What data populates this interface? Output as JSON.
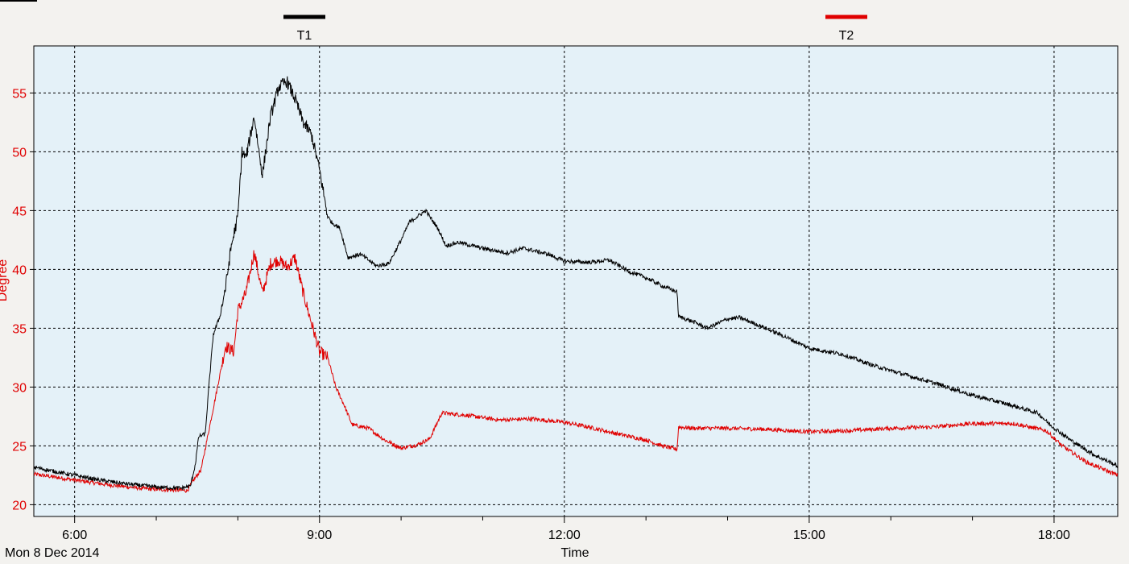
{
  "chart_data": {
    "type": "line",
    "title": "",
    "xlabel": "Time",
    "ylabel": "Degree",
    "date_label": "Mon 8 Dec 2014",
    "x_unit": "hours of day",
    "xlim": [
      5.5,
      18.78
    ],
    "ylim": [
      19,
      59
    ],
    "x_ticks": [
      {
        "value": 6,
        "label": "6:00"
      },
      {
        "value": 9,
        "label": "9:00"
      },
      {
        "value": 12,
        "label": "12:00"
      },
      {
        "value": 15,
        "label": "15:00"
      },
      {
        "value": 18,
        "label": "18:00"
      }
    ],
    "y_ticks": [
      20,
      25,
      30,
      35,
      40,
      45,
      50,
      55
    ],
    "grid": true,
    "legend_position": "top",
    "colors": {
      "background": "#e4f1f8",
      "grid": "#000000",
      "y_tick_text": "#e00000",
      "ylabel_text": "#e00000"
    },
    "series": [
      {
        "name": "T1",
        "color": "#000000",
        "noise": 0.35,
        "points": [
          [
            5.5,
            23.2
          ],
          [
            5.7,
            22.9
          ],
          [
            6.0,
            22.5
          ],
          [
            6.3,
            22.1
          ],
          [
            6.6,
            21.8
          ],
          [
            7.0,
            21.5
          ],
          [
            7.3,
            21.4
          ],
          [
            7.42,
            21.6
          ],
          [
            7.48,
            23.5
          ],
          [
            7.52,
            25.8
          ],
          [
            7.6,
            26.0
          ],
          [
            7.65,
            30.5
          ],
          [
            7.7,
            34.5
          ],
          [
            7.78,
            36.0
          ],
          [
            7.85,
            38.5
          ],
          [
            7.92,
            42.0
          ],
          [
            8.0,
            44.5
          ],
          [
            8.05,
            50.0
          ],
          [
            8.1,
            49.5
          ],
          [
            8.2,
            53.0
          ],
          [
            8.3,
            48.0
          ],
          [
            8.4,
            53.0
          ],
          [
            8.5,
            55.5
          ],
          [
            8.6,
            56.0
          ],
          [
            8.7,
            54.5
          ],
          [
            8.8,
            52.5
          ],
          [
            8.9,
            51.5
          ],
          [
            9.0,
            48.5
          ],
          [
            9.1,
            44.5
          ],
          [
            9.15,
            44.0
          ],
          [
            9.25,
            43.5
          ],
          [
            9.35,
            41.0
          ],
          [
            9.5,
            41.3
          ],
          [
            9.7,
            40.3
          ],
          [
            9.85,
            40.5
          ],
          [
            10.0,
            42.5
          ],
          [
            10.1,
            44.0
          ],
          [
            10.3,
            45.0
          ],
          [
            10.45,
            43.5
          ],
          [
            10.55,
            42.0
          ],
          [
            10.7,
            42.3
          ],
          [
            11.0,
            41.8
          ],
          [
            11.3,
            41.4
          ],
          [
            11.5,
            41.8
          ],
          [
            11.8,
            41.3
          ],
          [
            12.0,
            40.7
          ],
          [
            12.3,
            40.6
          ],
          [
            12.55,
            40.8
          ],
          [
            12.8,
            39.8
          ],
          [
            13.0,
            39.3
          ],
          [
            13.2,
            38.6
          ],
          [
            13.38,
            38.1
          ],
          [
            13.4,
            36.0
          ],
          [
            13.6,
            35.5
          ],
          [
            13.75,
            35.0
          ],
          [
            14.0,
            35.8
          ],
          [
            14.15,
            35.9
          ],
          [
            14.4,
            35.2
          ],
          [
            14.7,
            34.3
          ],
          [
            15.0,
            33.3
          ],
          [
            15.4,
            32.8
          ],
          [
            15.8,
            31.8
          ],
          [
            16.2,
            31.0
          ],
          [
            16.6,
            30.2
          ],
          [
            17.0,
            29.3
          ],
          [
            17.4,
            28.6
          ],
          [
            17.8,
            27.8
          ],
          [
            17.95,
            26.8
          ],
          [
            18.2,
            25.5
          ],
          [
            18.5,
            24.2
          ],
          [
            18.78,
            23.3
          ]
        ]
      },
      {
        "name": "T2",
        "color": "#e00000",
        "noise": 0.35,
        "points": [
          [
            5.5,
            22.6
          ],
          [
            5.8,
            22.3
          ],
          [
            6.0,
            22.1
          ],
          [
            6.4,
            21.7
          ],
          [
            6.8,
            21.4
          ],
          [
            7.0,
            21.3
          ],
          [
            7.38,
            21.2
          ],
          [
            7.45,
            22.0
          ],
          [
            7.55,
            23.0
          ],
          [
            7.65,
            26.5
          ],
          [
            7.75,
            30.0
          ],
          [
            7.85,
            33.5
          ],
          [
            7.95,
            33.0
          ],
          [
            8.0,
            36.5
          ],
          [
            8.1,
            38.0
          ],
          [
            8.2,
            41.5
          ],
          [
            8.3,
            38.0
          ],
          [
            8.4,
            40.5
          ],
          [
            8.5,
            40.8
          ],
          [
            8.6,
            40.2
          ],
          [
            8.7,
            41.0
          ],
          [
            8.8,
            38.0
          ],
          [
            8.9,
            35.5
          ],
          [
            9.0,
            33.0
          ],
          [
            9.1,
            32.5
          ],
          [
            9.2,
            30.0
          ],
          [
            9.3,
            28.5
          ],
          [
            9.4,
            26.8
          ],
          [
            9.6,
            26.5
          ],
          [
            9.8,
            25.5
          ],
          [
            10.0,
            24.8
          ],
          [
            10.2,
            25.1
          ],
          [
            10.35,
            25.6
          ],
          [
            10.5,
            27.8
          ],
          [
            10.8,
            27.6
          ],
          [
            11.2,
            27.2
          ],
          [
            11.6,
            27.3
          ],
          [
            12.0,
            27.0
          ],
          [
            12.3,
            26.6
          ],
          [
            12.6,
            26.1
          ],
          [
            13.0,
            25.5
          ],
          [
            13.2,
            25.0
          ],
          [
            13.38,
            24.7
          ],
          [
            13.4,
            26.6
          ],
          [
            13.6,
            26.5
          ],
          [
            14.0,
            26.5
          ],
          [
            14.5,
            26.4
          ],
          [
            15.0,
            26.2
          ],
          [
            15.5,
            26.3
          ],
          [
            16.0,
            26.5
          ],
          [
            16.5,
            26.6
          ],
          [
            17.0,
            26.9
          ],
          [
            17.5,
            26.9
          ],
          [
            17.9,
            26.3
          ],
          [
            18.1,
            25.0
          ],
          [
            18.4,
            23.6
          ],
          [
            18.78,
            22.5
          ]
        ]
      }
    ]
  }
}
